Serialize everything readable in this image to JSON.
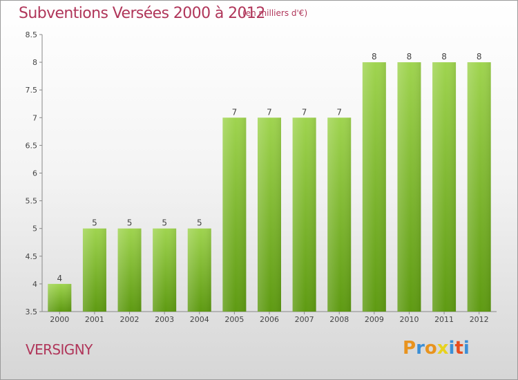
{
  "chart_data": {
    "type": "bar",
    "title": "Subventions Versées 2000 à 2012",
    "subtitle": "(en milliers d'€)",
    "categories": [
      "2000",
      "2001",
      "2002",
      "2003",
      "2004",
      "2005",
      "2006",
      "2007",
      "2008",
      "2009",
      "2010",
      "2011",
      "2012"
    ],
    "values": [
      4,
      5,
      5,
      5,
      5,
      7,
      7,
      7,
      7,
      8,
      8,
      8,
      8
    ],
    "data_labels": [
      "4",
      "5",
      "5",
      "5",
      "5",
      "7",
      "7",
      "7",
      "7",
      "8",
      "8",
      "8",
      "8"
    ],
    "ylim": [
      3.5,
      8.5
    ],
    "yticks": [
      "3.5",
      "4",
      "4.5",
      "5",
      "5.5",
      "6",
      "6.5",
      "7",
      "7.5",
      "8",
      "8.5"
    ],
    "grid": false,
    "bar_color": "#7ab630"
  },
  "footer": {
    "place": "VERSIGNY",
    "brand": "Proxiti",
    "brand_colors": [
      "#e8931e",
      "#3b8fd6",
      "#e8931e",
      "#e8d21e",
      "#3b8fd6",
      "#e84d1e",
      "#3b8fd6"
    ]
  },
  "colors": {
    "title": "#b0365a",
    "bar_top": "#9fd44f",
    "bar_bottom": "#5e9a12"
  }
}
